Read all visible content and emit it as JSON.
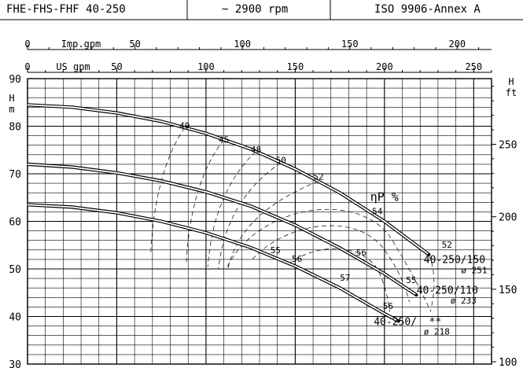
{
  "header": {
    "model": "FHE-FHS-FHF 40-250",
    "speed": "~ 2900 rpm",
    "standard": "ISO 9906-Annex A"
  },
  "chart_data": {
    "type": "line",
    "title": "",
    "axes": {
      "imp_gpm": {
        "label": "Imp.gpm",
        "ticks": [
          0,
          50,
          100,
          150,
          200
        ],
        "range": [
          0,
          216
        ]
      },
      "us_gpm": {
        "label": "US gpm",
        "ticks": [
          0,
          50,
          100,
          150,
          200,
          250
        ],
        "range": [
          0,
          260
        ]
      },
      "head_m": {
        "label_top": "H",
        "label_bottom": "m",
        "ticks": [
          30,
          40,
          50,
          60,
          70,
          80,
          90
        ],
        "range": [
          30,
          90
        ]
      },
      "head_ft": {
        "label_top": "H",
        "label_bottom": "ft",
        "ticks": [
          100,
          150,
          200,
          250
        ],
        "range": [
          98.4,
          295.3
        ]
      }
    },
    "grid": true,
    "series": [
      {
        "name": "40-250/150",
        "diameter": "ø 251",
        "points": [
          [
            0,
            84.5
          ],
          [
            25,
            84
          ],
          [
            50,
            82.8
          ],
          [
            75,
            81
          ],
          [
            100,
            78.5
          ],
          [
            125,
            75.2
          ],
          [
            150,
            71
          ],
          [
            175,
            66
          ],
          [
            200,
            60
          ],
          [
            225,
            53
          ]
        ]
      },
      {
        "name": "40-250/110",
        "diameter": "ø 233",
        "points": [
          [
            0,
            72
          ],
          [
            25,
            71.4
          ],
          [
            50,
            70.2
          ],
          [
            75,
            68.5
          ],
          [
            100,
            66.2
          ],
          [
            125,
            63.2
          ],
          [
            150,
            59.2
          ],
          [
            175,
            54.4
          ],
          [
            200,
            49
          ],
          [
            218,
            44.5
          ]
        ]
      },
      {
        "name": "40-250/ **",
        "diameter": "ø 218",
        "points": [
          [
            0,
            63.5
          ],
          [
            25,
            63
          ],
          [
            50,
            61.8
          ],
          [
            75,
            60
          ],
          [
            100,
            57.6
          ],
          [
            125,
            54.5
          ],
          [
            150,
            50.6
          ],
          [
            175,
            46
          ],
          [
            200,
            40.6
          ],
          [
            208,
            39
          ]
        ]
      }
    ],
    "efficiency": {
      "label": "ηP %",
      "top_curve_labels": [
        {
          "value": "40",
          "x": 88,
          "y": 79.5
        },
        {
          "value": "45",
          "x": 110,
          "y": 76.5
        },
        {
          "value": "48",
          "x": 128,
          "y": 74.5
        },
        {
          "value": "50",
          "x": 142,
          "y": 72.2
        },
        {
          "value": "52",
          "x": 163,
          "y": 68.8
        },
        {
          "value": "54",
          "x": 196,
          "y": 61.5
        },
        {
          "value": "52",
          "x": 235,
          "y": 54.5
        }
      ],
      "inner_labels": [
        {
          "value": "55",
          "x": 139,
          "y": 53.3
        },
        {
          "value": "56",
          "x": 151,
          "y": 51.5
        },
        {
          "value": "56",
          "x": 187,
          "y": 52.8
        },
        {
          "value": "57",
          "x": 178,
          "y": 47.5
        },
        {
          "value": "55",
          "x": 215,
          "y": 47
        },
        {
          "value": "56",
          "x": 202,
          "y": 41.6
        }
      ]
    },
    "curve_labels": [
      {
        "text": "40-250/150",
        "x": 222,
        "y": 51.2
      },
      {
        "text": "ø 251",
        "x": 243,
        "y": 49.1
      },
      {
        "text": "40-250/110",
        "x": 218,
        "y": 44.8
      },
      {
        "text": "ø 233",
        "x": 237,
        "y": 42.7
      },
      {
        "text": "40-250/",
        "x": 194,
        "y": 38.2
      },
      {
        "text": "**",
        "x": 225,
        "y": 38.2
      },
      {
        "text": "ø 218",
        "x": 222,
        "y": 36.2
      }
    ]
  }
}
